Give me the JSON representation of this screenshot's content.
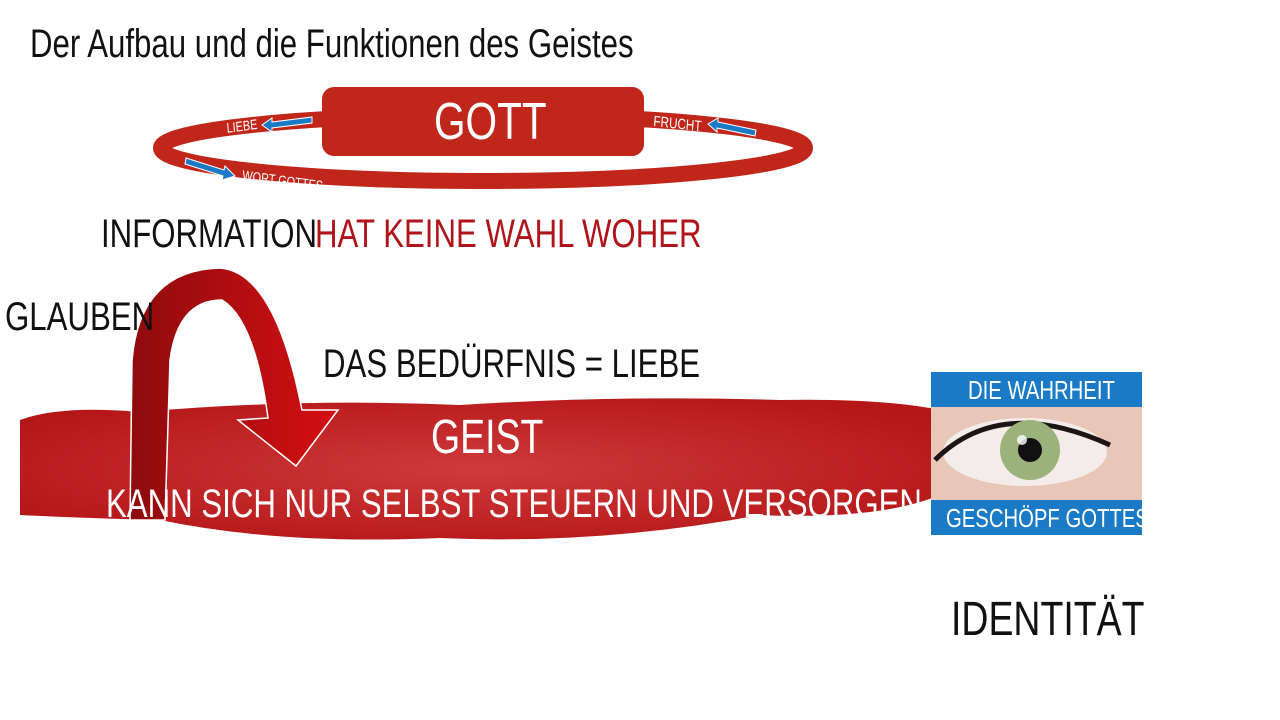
{
  "title": "Der Aufbau und die Funktionen des Geistes",
  "gott_ring": {
    "label": "GOTT",
    "arrow_left_top": "LIEBE",
    "arrow_left_bottom": "WORT GOTTES",
    "arrow_right": "FRUCHT"
  },
  "information": {
    "label": "INFORMATION",
    "note": "HAT KEINE WAHL WOHER"
  },
  "glauben": "GLAUBEN",
  "beduerfnis": "DAS BEDÜRFNIS = LIEBE",
  "geist": {
    "label": "GEIST",
    "subtitle": "KANN SICH NUR SELBST STEUERN UND VERSORGEN"
  },
  "eye_card": {
    "top_label": "DIE WAHRHEIT",
    "bottom_label": "GESCHÖPF GOTTES"
  },
  "identitaet": "IDENTITÄT",
  "colors": {
    "red": "#c0271a",
    "dark_red": "#b51a1c",
    "blue": "#1a7ac6",
    "text_red": "#b0141a"
  }
}
